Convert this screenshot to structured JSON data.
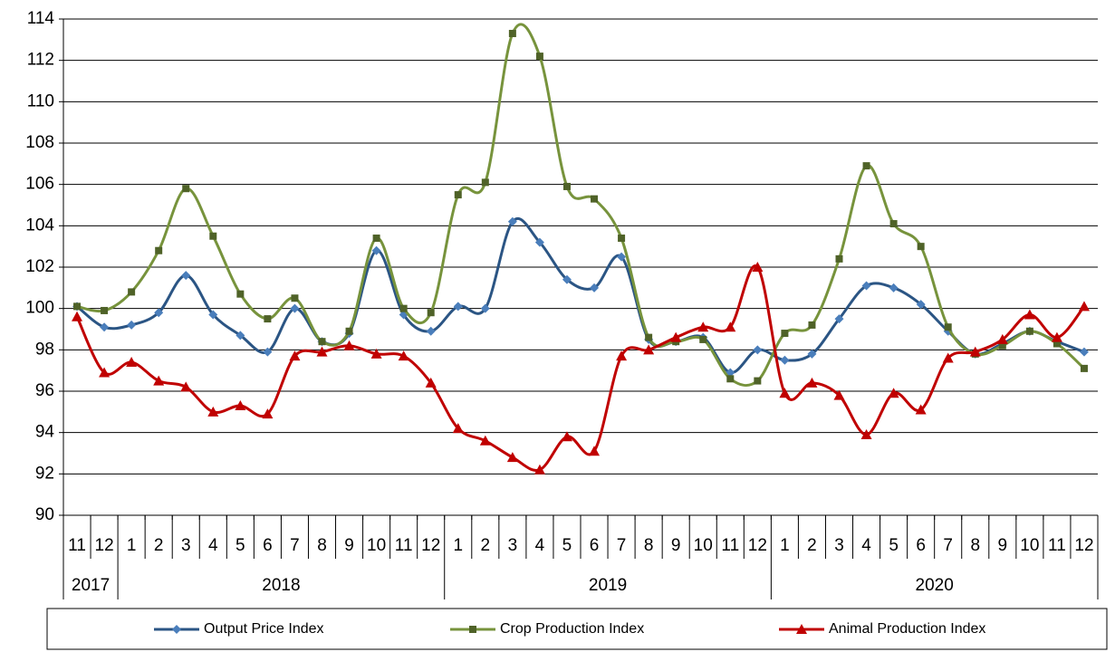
{
  "chart_data": {
    "type": "line",
    "smooth": true,
    "grid": true,
    "ylim": [
      90,
      114
    ],
    "yticks": [
      90,
      92,
      94,
      96,
      98,
      100,
      102,
      104,
      106,
      108,
      110,
      112,
      114
    ],
    "category_groups": [
      {
        "label": "2017",
        "categories": [
          "11",
          "12"
        ]
      },
      {
        "label": "2018",
        "categories": [
          "1",
          "2",
          "3",
          "4",
          "5",
          "6",
          "7",
          "8",
          "9",
          "10",
          "11",
          "12"
        ]
      },
      {
        "label": "2019",
        "categories": [
          "1",
          "2",
          "3",
          "4",
          "5",
          "6",
          "7",
          "8",
          "9",
          "10",
          "11",
          "12"
        ]
      },
      {
        "label": "2020",
        "categories": [
          "1",
          "2",
          "3",
          "4",
          "5",
          "6",
          "7",
          "8",
          "9",
          "10",
          "11",
          "12"
        ]
      }
    ],
    "legend": "bottom",
    "series": [
      {
        "name": "Output Price Index",
        "color": "#2b5584",
        "marker_color": "#4a7ebb",
        "marker": "diamond",
        "values": [
          100.1,
          99.1,
          99.2,
          99.8,
          101.6,
          99.7,
          98.7,
          97.9,
          100.0,
          98.4,
          98.8,
          102.8,
          99.7,
          98.9,
          100.1,
          100.0,
          104.2,
          103.2,
          101.4,
          101.0,
          102.5,
          98.5,
          98.4,
          98.6,
          96.9,
          98.0,
          97.5,
          97.8,
          99.5,
          101.1,
          101.0,
          100.2,
          98.9,
          97.8,
          98.3,
          98.9,
          98.4,
          97.9
        ]
      },
      {
        "name": "Crop Production Index",
        "color": "#77933c",
        "marker_color": "#4f6228",
        "marker": "square",
        "values": [
          100.1,
          99.9,
          100.8,
          102.8,
          105.8,
          103.5,
          100.7,
          99.5,
          100.5,
          98.4,
          98.9,
          103.4,
          100.0,
          99.8,
          105.5,
          106.1,
          113.3,
          112.2,
          105.9,
          105.3,
          103.4,
          98.6,
          98.4,
          98.5,
          96.6,
          96.5,
          98.8,
          99.2,
          102.4,
          106.9,
          104.1,
          103.0,
          99.1,
          97.8,
          98.2,
          98.9,
          98.3,
          97.1
        ]
      },
      {
        "name": "Animal Production Index",
        "color": "#c00000",
        "marker_color": "#c00000",
        "marker": "triangle",
        "values": [
          99.6,
          96.9,
          97.4,
          96.5,
          96.2,
          95.0,
          95.3,
          94.9,
          97.7,
          97.9,
          98.2,
          97.8,
          97.7,
          96.4,
          94.2,
          93.6,
          92.8,
          92.2,
          93.8,
          93.1,
          97.7,
          98.0,
          98.6,
          99.1,
          99.1,
          102.0,
          95.9,
          96.4,
          95.8,
          93.9,
          95.9,
          95.1,
          97.6,
          97.9,
          98.5,
          99.7,
          98.6,
          100.1
        ]
      }
    ]
  }
}
